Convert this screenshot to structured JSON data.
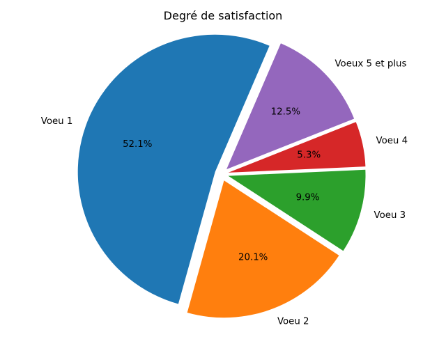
{
  "chart_data": {
    "type": "pie",
    "title": "Degré de satisfaction",
    "start_angle_deg": 66.7,
    "counterclockwise": true,
    "explode": true,
    "slices": [
      {
        "label": "Voeu 1",
        "value": 52.1,
        "pct_label": "52.1%",
        "color": "#1f77b4"
      },
      {
        "label": "Voeu 2",
        "value": 20.1,
        "pct_label": "20.1%",
        "color": "#ff7f0e"
      },
      {
        "label": "Voeu 3",
        "value": 9.9,
        "pct_label": "9.9%",
        "color": "#2ca02c"
      },
      {
        "label": "Voeu 4",
        "value": 5.3,
        "pct_label": "5.3%",
        "color": "#d62728"
      },
      {
        "label": "Voeux 5 et plus",
        "value": 12.5,
        "pct_label": "12.5%",
        "color": "#9467bd"
      }
    ]
  }
}
